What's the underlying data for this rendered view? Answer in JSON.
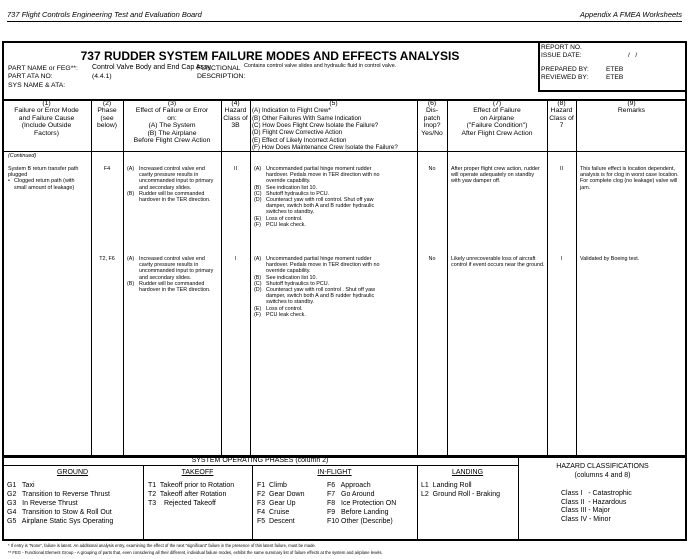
{
  "page_header": {
    "left": "737 Flight Controls Engineering Test and Evaluation Board",
    "right": "Appendix A   FMEA Worksheets"
  },
  "form": {
    "title": "737 RUDDER SYSTEM FAILURE MODES AND EFFECTS ANALYSIS",
    "part_name_label": "PART NAME or FEG**:",
    "part_name": "Control Valve Body and End Cap Assy",
    "part_ata_label": "PART ATA NO:",
    "part_ata": "(4.4.1)",
    "sys_name_label": "SYS NAME & ATA:",
    "functional_label_1": "FUNCTIONAL",
    "functional_label_2": "DESCRIPTION:",
    "functional_description": "Contains control valve slides and hydraulic fluid in control valve.",
    "report_no_label": "REPORT NO.",
    "issue_date_label": "ISSUE DATE:",
    "issue_date": "/   /",
    "prepared_by_label": "PREPARED BY:",
    "prepared_by": "ETEB",
    "reviewed_by_label": "REVIEWED BY:",
    "reviewed_by": "ETEB"
  },
  "columns": [
    {
      "num": "(1)",
      "lines": [
        "Failure or Error Mode",
        "and Failure Cause",
        "(Include Outside",
        "Factors)"
      ]
    },
    {
      "num": "(2)",
      "lines": [
        "Phase",
        "(see",
        "below)"
      ]
    },
    {
      "num": "(3)",
      "lines": [
        "Effect of Failure or Error",
        "on:",
        "(A)  The System",
        "(B)  The Airplane",
        "Before Flight Crew Action"
      ]
    },
    {
      "num": "(4)",
      "lines": [
        "Hazard",
        "Class of",
        "3B"
      ]
    },
    {
      "num": "(5)",
      "lines": [
        "(A)  Indication to Flight Crew*",
        "(B)  Other Failures With Same Indication",
        "(C)  How Does Flight Crew Isolate the Failure?",
        "(D)  Flight Crew Corrective Action",
        "(E)  Effect of Likely Incorrect Action",
        "(F)  How Does Maintenance Crew Isolate the Failure?"
      ]
    },
    {
      "num": "(6)",
      "lines": [
        "Dis-",
        "patch",
        "Inop?",
        "Yes/No"
      ]
    },
    {
      "num": "(7)",
      "lines": [
        "Effect of Failure",
        "on Airplane",
        "(\"Failure Condition\")",
        "After Flight Crew Action"
      ]
    },
    {
      "num": "(8)",
      "lines": [
        "Hazard",
        "Class of",
        "7"
      ]
    },
    {
      "num": "(9)",
      "lines": [
        "Remarks"
      ]
    }
  ],
  "continued_label": "(Continued)",
  "rows": [
    {
      "failure_mode": "System B return transfer path plugged",
      "failure_cause": "Clogged return path (with small amount of leakage)",
      "phase": "F4",
      "effect": [
        {
          "k": "(A)",
          "v": "Increased control valve end cavity pressure results in uncommanded input to primary and secondary slides."
        },
        {
          "k": "(B)",
          "v": "Rudder will be commanded hardover in the TER direction."
        }
      ],
      "hazard_3b": "II",
      "indication": [
        {
          "k": "(A)",
          "v": "Uncommanded partial hinge moment rudder hardover. Pedals move in TER direction with no override capability."
        },
        {
          "k": "(B)",
          "v": "See indication list 10."
        },
        {
          "k": "(C)",
          "v": "Shutoff hydraulics to PCU."
        },
        {
          "k": "(D)",
          "v": "Counteract yaw with roll control.  Shut off yaw damper, switch both A and B rudder hydraulic switches to standby."
        },
        {
          "k": "(E)",
          "v": "Loss of control."
        },
        {
          "k": "(F)",
          "v": "PCU leak check."
        }
      ],
      "dispatch": "No",
      "effect_airplane": "After proper flight crew action, rudder will operate adequately on standby with yaw damper off.",
      "hazard_7": "II",
      "remarks": "This failure effect is location dependent, analysis is for clog in worst case location. For complete clog (no leakage) valve will jam."
    },
    {
      "phase": "T2, F6",
      "effect": [
        {
          "k": "(A)",
          "v": "Increased control valve end cavity pressure results in uncommanded input to primary and secondary slides."
        },
        {
          "k": "(B)",
          "v": "Rudder will be commanded hardover in the TER direction."
        }
      ],
      "hazard_3b": "I",
      "indication": [
        {
          "k": "(A)",
          "v": "Uncommanded partial hinge moment rudder hardover. Pedals move in TER direction with no override capability."
        },
        {
          "k": "(B)",
          "v": "See indication list 10."
        },
        {
          "k": "(C)",
          "v": "Shutoff hydraulics to PCU."
        },
        {
          "k": "(D)",
          "v": "Counteract yaw with roll control .  Shut off yaw damper, switch both A and B rudder hydraulic switches to standby."
        },
        {
          "k": "(E)",
          "v": "Loss of control."
        },
        {
          "k": "(F)",
          "v": "PCU leak check."
        }
      ],
      "dispatch": "No",
      "effect_airplane": "Likely unrecoverable loss of aircraft control if event occurs near the ground.",
      "hazard_7": "I",
      "remarks": "Validated by Boeing test."
    }
  ],
  "phases": {
    "title": "SYSTEM OPERATING PHASES (column 2)",
    "ground": {
      "title": "GROUND",
      "items": [
        "G1   Taxi",
        "G2   Transition to Reverse Thrust",
        "G3   In Reverse Thrust",
        "G4   Transition to Stow & Roll Out",
        "G5   Airplane Static Sys Operating"
      ]
    },
    "takeoff": {
      "title": "TAKEOFF",
      "items": [
        "T1  Takeoff prior to Rotation",
        "T2  Takeoff after Rotation",
        "T3    Rejected Takeoff"
      ]
    },
    "inflight": {
      "title": "IN-FLIGHT",
      "items_a": [
        "F1  Climb",
        "F2  Gear Down",
        "F3  Gear Up",
        "F4  Cruise",
        "F5  Descent"
      ],
      "items_b": [
        "F6   Approach",
        "F7   Go Around",
        "F8   Ice Protection ON",
        "F9   Before Landing",
        "F10 Other (Describe)"
      ]
    },
    "landing": {
      "title": "LANDING",
      "items": [
        "L1  Landing Roll",
        "L2  Ground Roll - Braking"
      ]
    }
  },
  "hazard_classifications": {
    "title": "HAZARD CLASSIFICATIONS",
    "subtitle": "(columns 4 and 8)",
    "items": [
      "Class I   - Catastrophic",
      "Class II  - Hazardous",
      "Class III - Major",
      "Class IV - Minor"
    ]
  },
  "footnotes": [
    "*  If entry is \"None\", failure is latent.  An additional analysis entry, examining the effect of the next \"significant\" failure in the presence of this latent failure, must be made.",
    "**  FEG - Functional Element Group - A grouping of parts that, even considering all their different, individual failure modes, exhibit the same summary list of failure effects at the system and airplane levels."
  ]
}
